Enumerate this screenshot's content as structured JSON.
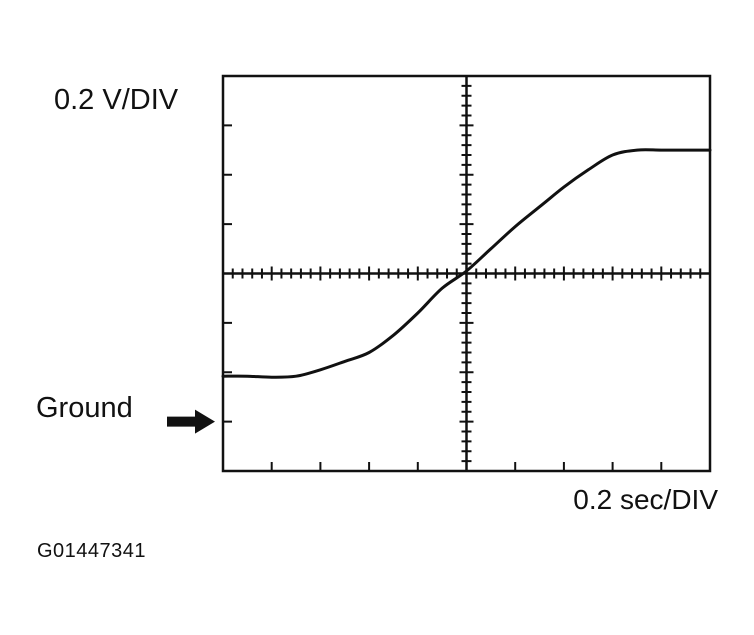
{
  "chart_data": {
    "type": "line",
    "title": "",
    "vertical_scale_label": "0.2 V/DIV",
    "horizontal_scale_label": "0.2 sec/DIV",
    "ground_label": "Ground",
    "grid": false,
    "divisions": {
      "x": 10,
      "y": 8
    },
    "xlim": [
      0,
      10
    ],
    "ylim": [
      -4,
      4
    ],
    "ground_level_div": -3,
    "series": [
      {
        "x": [
          0,
          0.5,
          1,
          1.5,
          2,
          2.5,
          3,
          3.5,
          4,
          4.5,
          5,
          5.5,
          6,
          6.5,
          7,
          7.5,
          8,
          8.5,
          9,
          9.5,
          10
        ],
        "y": [
          -2.08,
          -2.08,
          -2.1,
          -2.08,
          -1.95,
          -1.78,
          -1.6,
          -1.25,
          -0.8,
          -0.3,
          0.05,
          0.5,
          0.95,
          1.35,
          1.75,
          2.1,
          2.4,
          2.5,
          2.5,
          2.5,
          2.5
        ]
      }
    ]
  },
  "figure_id": "G01447341"
}
